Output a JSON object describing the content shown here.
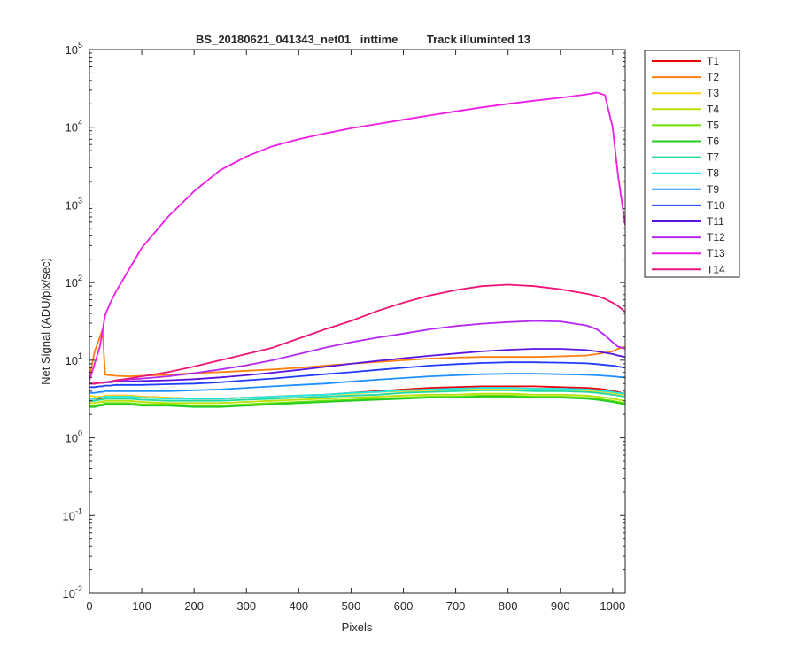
{
  "chart_data": {
    "type": "line",
    "title": "BS_20180621_041343_net01   inttime         Track illuminted 13",
    "xlabel": "Pixels",
    "ylabel": "Net Signal (ADU/pix/sec)",
    "xlim": [
      0,
      1024
    ],
    "ylim": [
      0.01,
      100000
    ],
    "yscale": "log",
    "grid": false,
    "legend_position": "outside-right-top",
    "xticks": [
      0,
      100,
      200,
      300,
      400,
      500,
      600,
      700,
      800,
      900,
      1000
    ],
    "xtick_labels": [
      "0",
      "100",
      "200",
      "300",
      "400",
      "500",
      "600",
      "700",
      "800",
      "900",
      "1000"
    ],
    "yticks": [
      0.01,
      0.1,
      1,
      10,
      100,
      1000,
      10000,
      100000
    ],
    "ytick_labels": [
      {
        "base": "10",
        "exp": "-2"
      },
      {
        "base": "10",
        "exp": "-1"
      },
      {
        "base": "10",
        "exp": "0"
      },
      {
        "base": "10",
        "exp": "1"
      },
      {
        "base": "10",
        "exp": "2"
      },
      {
        "base": "10",
        "exp": "3"
      },
      {
        "base": "10",
        "exp": "4"
      },
      {
        "base": "10",
        "exp": "5"
      }
    ],
    "x": [
      0,
      10,
      20,
      25,
      30,
      40,
      50,
      75,
      100,
      150,
      200,
      250,
      300,
      350,
      400,
      450,
      500,
      550,
      600,
      650,
      700,
      750,
      800,
      850,
      900,
      950,
      970,
      985,
      1000,
      1010,
      1024
    ],
    "series": [
      {
        "name": "T1",
        "color": "#e8000b",
        "values": [
          3.0,
          3.0,
          3.2,
          3.3,
          3.4,
          3.5,
          3.5,
          3.5,
          3.4,
          3.3,
          3.2,
          3.2,
          3.3,
          3.4,
          3.5,
          3.6,
          3.8,
          4.0,
          4.2,
          4.4,
          4.5,
          4.6,
          4.6,
          4.6,
          4.5,
          4.4,
          4.3,
          4.2,
          4.0,
          3.9,
          3.7
        ]
      },
      {
        "name": "T2",
        "color": "#ff7f0e",
        "values": [
          6.0,
          13.0,
          20.0,
          25.0,
          6.5,
          6.4,
          6.3,
          6.2,
          6.3,
          6.5,
          6.8,
          7.0,
          7.3,
          7.6,
          8.0,
          8.5,
          9.0,
          9.5,
          10.0,
          10.5,
          10.8,
          11.0,
          11.0,
          11.0,
          11.2,
          11.5,
          12.0,
          12.5,
          13.0,
          14.0,
          15.0
        ]
      },
      {
        "name": "T3",
        "color": "#ffd700",
        "values": [
          3.5,
          3.4,
          3.4,
          3.4,
          3.5,
          3.5,
          3.5,
          3.5,
          3.4,
          3.3,
          3.2,
          3.2,
          3.3,
          3.4,
          3.5,
          3.6,
          3.7,
          3.9,
          4.0,
          4.1,
          4.2,
          4.3,
          4.3,
          4.3,
          4.2,
          4.1,
          4.0,
          3.9,
          3.8,
          3.7,
          3.6
        ]
      },
      {
        "name": "T4",
        "color": "#b8e000",
        "values": [
          2.8,
          2.8,
          2.9,
          2.9,
          3.0,
          3.0,
          3.0,
          3.0,
          2.9,
          2.8,
          2.8,
          2.8,
          2.9,
          3.0,
          3.1,
          3.2,
          3.3,
          3.4,
          3.5,
          3.6,
          3.6,
          3.7,
          3.7,
          3.6,
          3.6,
          3.5,
          3.4,
          3.3,
          3.2,
          3.1,
          3.0
        ]
      },
      {
        "name": "T5",
        "color": "#6ee000",
        "values": [
          2.6,
          2.6,
          2.7,
          2.7,
          2.8,
          2.8,
          2.8,
          2.8,
          2.7,
          2.7,
          2.6,
          2.6,
          2.7,
          2.8,
          2.9,
          3.0,
          3.1,
          3.2,
          3.3,
          3.4,
          3.4,
          3.5,
          3.5,
          3.4,
          3.4,
          3.3,
          3.2,
          3.1,
          3.0,
          2.9,
          2.8
        ]
      },
      {
        "name": "T6",
        "color": "#22cc22",
        "values": [
          2.5,
          2.5,
          2.6,
          2.6,
          2.7,
          2.7,
          2.7,
          2.7,
          2.6,
          2.6,
          2.5,
          2.5,
          2.6,
          2.7,
          2.8,
          2.9,
          3.0,
          3.1,
          3.2,
          3.3,
          3.3,
          3.4,
          3.4,
          3.3,
          3.3,
          3.2,
          3.1,
          3.0,
          2.9,
          2.8,
          2.7
        ]
      },
      {
        "name": "T7",
        "color": "#22d8a0",
        "values": [
          3.0,
          3.0,
          3.1,
          3.1,
          3.2,
          3.2,
          3.2,
          3.2,
          3.1,
          3.0,
          3.0,
          3.0,
          3.1,
          3.2,
          3.3,
          3.4,
          3.5,
          3.6,
          3.8,
          3.9,
          4.0,
          4.1,
          4.1,
          4.0,
          4.0,
          3.9,
          3.8,
          3.7,
          3.6,
          3.5,
          3.4
        ]
      },
      {
        "name": "T8",
        "color": "#1ee8e8",
        "values": [
          3.2,
          3.2,
          3.3,
          3.3,
          3.4,
          3.4,
          3.4,
          3.4,
          3.3,
          3.2,
          3.2,
          3.2,
          3.3,
          3.4,
          3.5,
          3.6,
          3.8,
          3.9,
          4.1,
          4.2,
          4.3,
          4.4,
          4.4,
          4.3,
          4.3,
          4.2,
          4.1,
          4.0,
          3.9,
          3.8,
          3.7
        ]
      },
      {
        "name": "T9",
        "color": "#1e90ff",
        "values": [
          3.8,
          3.8,
          3.9,
          3.9,
          4.0,
          4.0,
          4.0,
          4.0,
          4.0,
          4.0,
          4.1,
          4.2,
          4.4,
          4.6,
          4.8,
          5.0,
          5.3,
          5.6,
          5.9,
          6.2,
          6.4,
          6.6,
          6.7,
          6.7,
          6.6,
          6.5,
          6.4,
          6.3,
          6.2,
          6.1,
          6.0
        ]
      },
      {
        "name": "T10",
        "color": "#1e3cff",
        "values": [
          4.5,
          4.5,
          4.6,
          4.6,
          4.7,
          4.7,
          4.8,
          4.8,
          4.8,
          4.9,
          5.0,
          5.2,
          5.5,
          5.8,
          6.2,
          6.6,
          7.0,
          7.5,
          8.0,
          8.5,
          8.9,
          9.2,
          9.4,
          9.4,
          9.3,
          9.1,
          8.9,
          8.7,
          8.5,
          8.3,
          8.0
        ]
      },
      {
        "name": "T11",
        "color": "#5a14e0",
        "values": [
          5.0,
          5.0,
          5.1,
          5.1,
          5.2,
          5.2,
          5.3,
          5.3,
          5.4,
          5.5,
          5.7,
          6.0,
          6.4,
          6.9,
          7.5,
          8.2,
          9.0,
          9.8,
          10.6,
          11.4,
          12.2,
          13.0,
          13.6,
          14.0,
          14.0,
          13.5,
          13.0,
          12.5,
          12.0,
          11.5,
          11.0
        ]
      },
      {
        "name": "T12",
        "color": "#b428f0",
        "values": [
          5.0,
          5.0,
          5.1,
          5.1,
          5.2,
          5.3,
          5.4,
          5.6,
          5.8,
          6.2,
          6.8,
          7.6,
          8.6,
          10.0,
          12.0,
          14.5,
          17.0,
          19.5,
          22.0,
          25.0,
          27.5,
          29.5,
          31.0,
          32.0,
          31.5,
          28.0,
          25.0,
          21.0,
          17.0,
          15.0,
          14.0
        ]
      },
      {
        "name": "T13",
        "color": "#ee1ce6",
        "values": [
          5.5,
          9.0,
          15.0,
          24.0,
          38.0,
          55.0,
          75.0,
          145.0,
          280.0,
          700.0,
          1500.0,
          2800.0,
          4200.0,
          5700.0,
          7000.0,
          8300.0,
          9700.0,
          11000.0,
          12500.0,
          14200.0,
          16000.0,
          18000.0,
          20000.0,
          22000.0,
          24000.0,
          26500.0,
          28000.0,
          26000.0,
          10000.0,
          2500.0,
          550.0
        ]
      },
      {
        "name": "T14",
        "color": "#ee1478",
        "values": [
          5.0,
          5.0,
          5.1,
          5.1,
          5.2,
          5.3,
          5.5,
          5.8,
          6.2,
          7.0,
          8.3,
          10.0,
          12.0,
          14.5,
          19.0,
          25.0,
          32.0,
          43.0,
          55.0,
          68.0,
          80.0,
          90.0,
          94.0,
          90.0,
          82.0,
          72.0,
          67.0,
          62.0,
          55.0,
          50.0,
          42.0
        ]
      }
    ]
  }
}
